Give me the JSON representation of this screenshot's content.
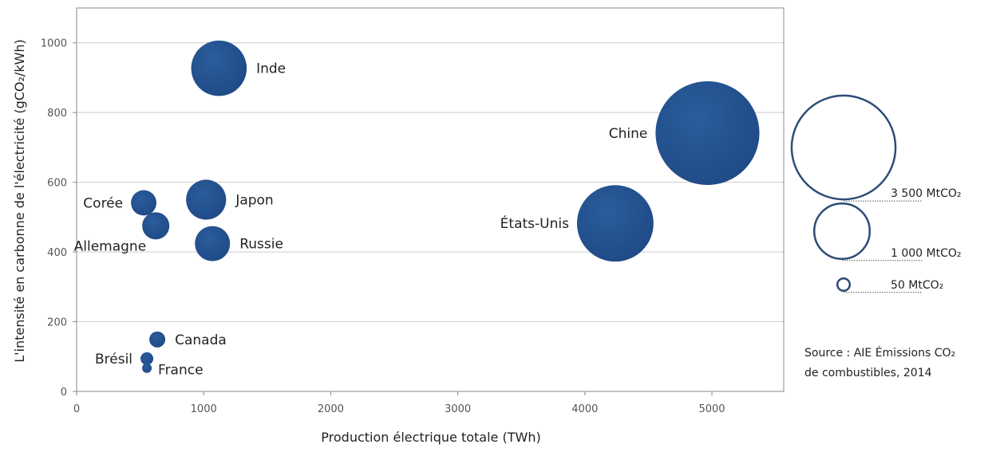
{
  "chart_data": {
    "type": "bubble",
    "xlabel": "Production électrique totale (TWh)",
    "ylabel": "L'intensité en carbonne de l'électricité (gCO₂/kWh)",
    "xlim": [
      0,
      5565
    ],
    "ylim": [
      0,
      1100
    ],
    "xticks": [
      0,
      1000,
      2000,
      3000,
      4000,
      5000
    ],
    "yticks": [
      0,
      200,
      400,
      600,
      800,
      1000
    ],
    "grid": "horizontal",
    "bubble_color": "#1f4a86",
    "points": [
      {
        "label": "Inde",
        "x": 1120,
        "y": 927,
        "emissions": 1000,
        "label_side": "right"
      },
      {
        "label": "Chine",
        "x": 4965,
        "y": 741,
        "emissions": 3500,
        "label_side": "left"
      },
      {
        "label": "États-Unis",
        "x": 4239,
        "y": 482,
        "emissions": 1900,
        "label_side": "left"
      },
      {
        "label": "Japon",
        "x": 1019,
        "y": 550,
        "emissions": 520,
        "label_side": "right"
      },
      {
        "label": "Russie",
        "x": 1069,
        "y": 424,
        "emissions": 400,
        "label_side": "right"
      },
      {
        "label": "Corée",
        "x": 528,
        "y": 541,
        "emissions": 210,
        "label_side": "left"
      },
      {
        "label": "Allemagne",
        "x": 623,
        "y": 475,
        "emissions": 240,
        "label_side": "below-left"
      },
      {
        "label": "Canada",
        "x": 635,
        "y": 149,
        "emissions": 83,
        "label_side": "right"
      },
      {
        "label": "Brésil",
        "x": 553,
        "y": 94,
        "emissions": 53,
        "label_side": "left"
      },
      {
        "label": "France",
        "x": 553,
        "y": 67,
        "emissions": 30,
        "label_side": "right"
      }
    ],
    "size_legend": [
      {
        "value": 3500,
        "label": "3 500 MtCO₂"
      },
      {
        "value": 1000,
        "label": "1 000 MtCO₂"
      },
      {
        "value": 50,
        "label": "50 MtCO₂"
      }
    ],
    "source_lines": [
      "Source : AIE Émissions CO₂",
      "de combustibles, 2014"
    ]
  }
}
